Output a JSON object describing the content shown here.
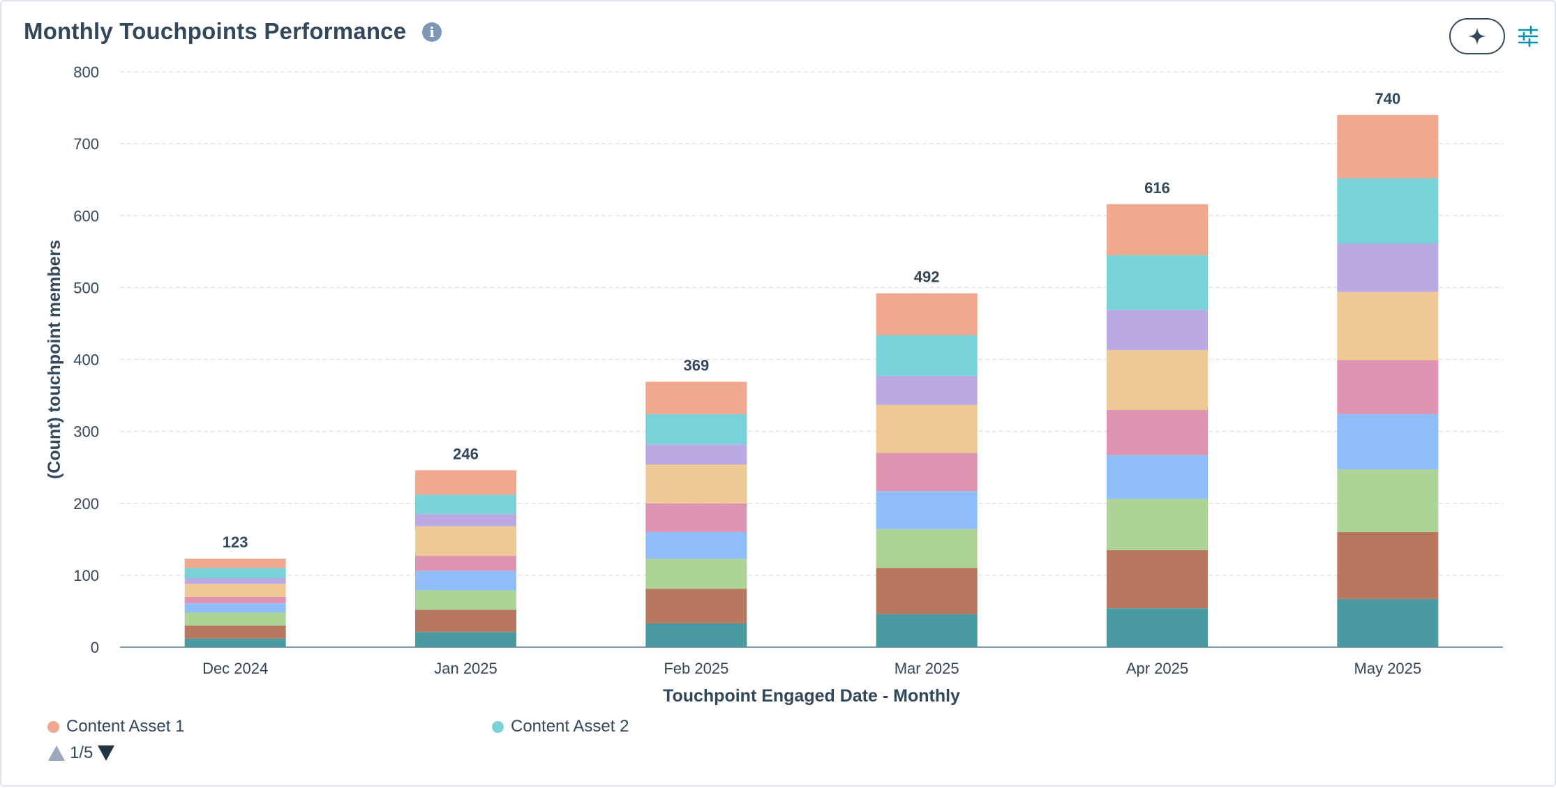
{
  "header": {
    "title": "Monthly Touchpoints Performance",
    "info_icon": "info-icon",
    "ai_icon": "sparkle-icon",
    "settings_icon": "sliders-icon"
  },
  "chart_data": {
    "type": "bar",
    "stacked": true,
    "categories": [
      "Dec 2024",
      "Jan 2025",
      "Feb 2025",
      "Mar 2025",
      "Apr 2025",
      "May 2025"
    ],
    "totals": [
      123,
      246,
      369,
      492,
      616,
      740
    ],
    "xlabel": "Touchpoint Engaged Date - Monthly",
    "ylabel": "(Count) touchpoint members",
    "ylim": [
      0,
      800
    ],
    "yticks": [
      0,
      100,
      200,
      300,
      400,
      500,
      600,
      700,
      800
    ],
    "grid": true,
    "legend_position": "bottom",
    "series_bottom_to_top": [
      {
        "color": "#4a9ba1",
        "values": [
          12,
          21,
          33,
          46,
          54,
          67
        ]
      },
      {
        "color": "#b8785f",
        "values": [
          18,
          31,
          48,
          64,
          81,
          93
        ]
      },
      {
        "color": "#add397",
        "values": [
          18,
          27,
          42,
          54,
          71,
          87
        ]
      },
      {
        "color": "#8fbdf7",
        "values": [
          13,
          27,
          37,
          53,
          61,
          77
        ]
      },
      {
        "color": "#de95b1",
        "values": [
          9,
          21,
          40,
          53,
          63,
          75
        ]
      },
      {
        "color": "#eec995",
        "values": [
          18,
          41,
          54,
          67,
          83,
          95
        ]
      },
      {
        "color": "#bba9e3",
        "values": [
          8,
          17,
          28,
          40,
          56,
          67
        ]
      },
      {
        "color": "#7ad2d9",
        "values": [
          14,
          27,
          42,
          57,
          76,
          91
        ]
      },
      {
        "name": "Content Asset 1",
        "color": "#f0a88f",
        "values": [
          13,
          34,
          45,
          58,
          71,
          88
        ]
      }
    ]
  },
  "legend": {
    "items": [
      {
        "label": "Content Asset 1",
        "color": "#f0a88f"
      },
      {
        "label": "Content Asset 2",
        "color": "#7ad2d9"
      }
    ],
    "pager_text": "1/5"
  }
}
